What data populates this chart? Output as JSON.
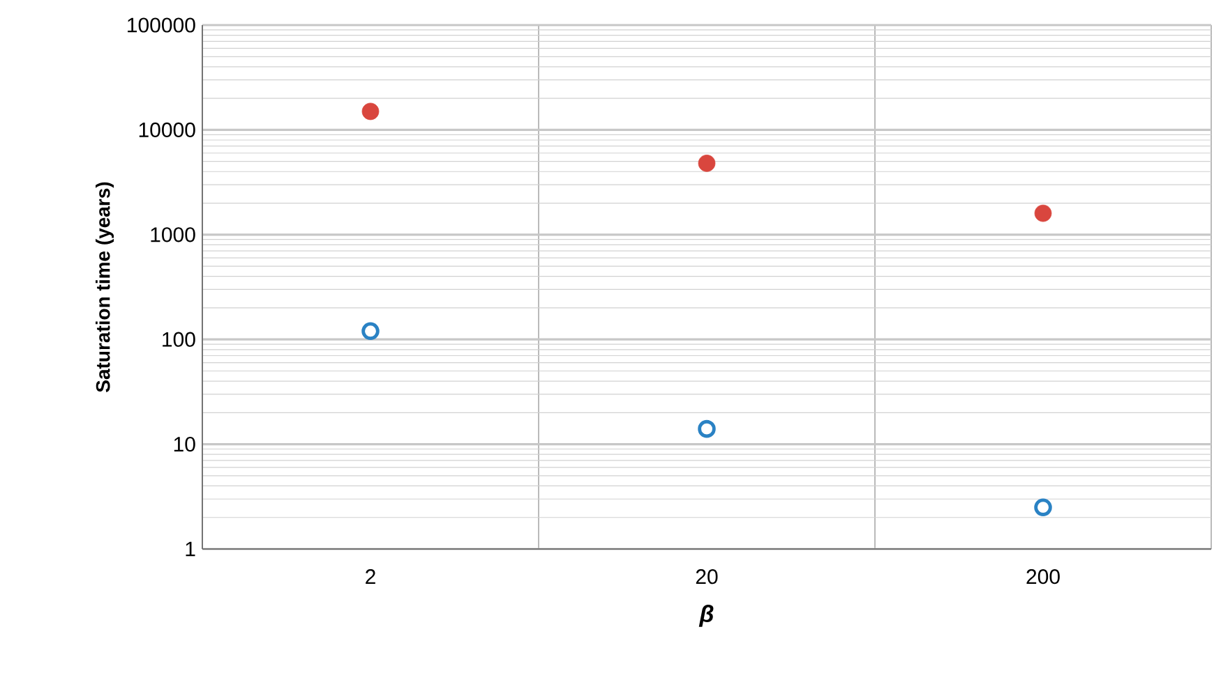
{
  "chart_data": {
    "type": "scatter",
    "xlabel": "β",
    "ylabel": "Saturation time (years)",
    "categories": [
      "2",
      "20",
      "200"
    ],
    "series": [
      {
        "color": "#d9463e",
        "marker": "circle",
        "values": [
          15000,
          4800,
          1600
        ]
      },
      {
        "color": "#2a82c4",
        "marker": "open circle",
        "values": [
          120,
          14,
          2.5
        ]
      }
    ],
    "log": "y",
    "ylim": [
      1,
      100000
    ],
    "yticks": [
      1,
      10,
      100,
      1000,
      10000,
      100000
    ],
    "grid": true
  }
}
